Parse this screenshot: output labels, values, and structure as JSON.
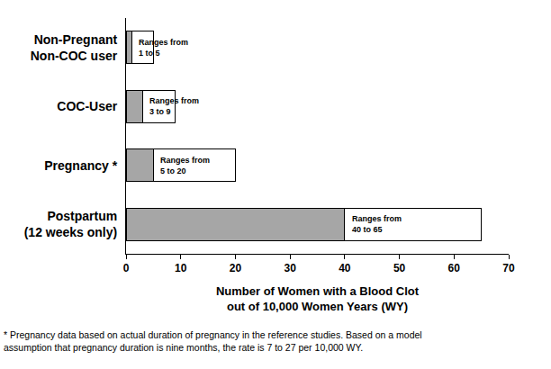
{
  "chart_data": {
    "type": "bar",
    "orientation": "horizontal",
    "stacked": true,
    "grid": false,
    "categories": [
      "Non-Pregnant\nNon-COC user",
      "COC-User",
      "Pregnancy *",
      "Postpartum\n(12 weeks only)"
    ],
    "series": [
      {
        "color": "#a6a6a6",
        "values": [
          1,
          3,
          5,
          40
        ]
      },
      {
        "color": "#ffffff",
        "values": [
          4,
          6,
          15,
          25
        ]
      }
    ],
    "range_labels": [
      "Ranges from\n1 to 5",
      "Ranges from\n3 to 9",
      "Ranges from\n5 to 20",
      "Ranges from\n40 to 65"
    ],
    "x_label": "Number of Women with a Blood Clot\nout of 10,000 Women Years (WY)",
    "xlim": [
      0,
      70
    ],
    "xticks": [
      0,
      10,
      20,
      30,
      40,
      50,
      60,
      70
    ],
    "footnote": "* Pregnancy data based on actual duration of pregnancy in the reference studies. Based on a model\nassumption that pregnancy duration is nine months, the rate is 7 to 27 per 10,000 WY."
  }
}
